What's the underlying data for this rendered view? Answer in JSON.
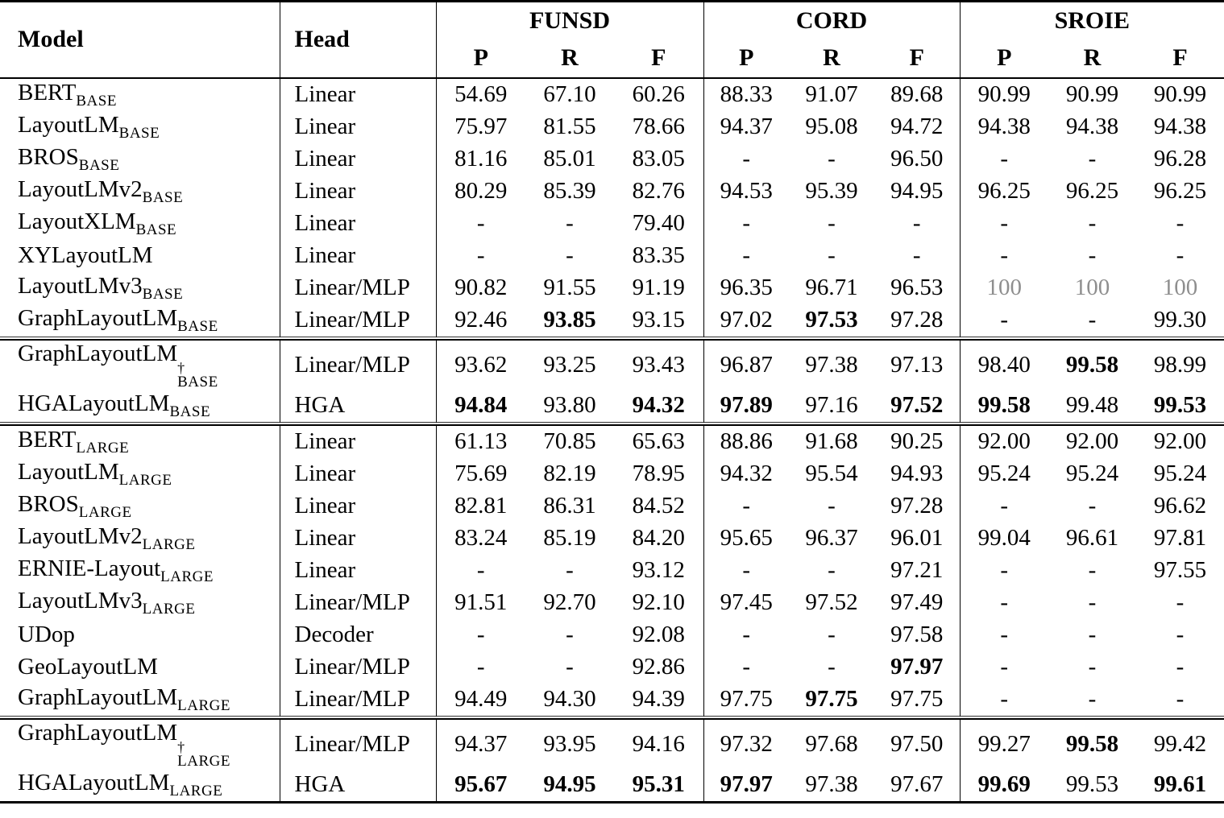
{
  "colors": {
    "text": "#000000",
    "muted_value": "#8e8e8e",
    "rule": "#000000",
    "background": "#ffffff"
  },
  "table": {
    "header": {
      "model": "Model",
      "head": "Head",
      "groups": [
        {
          "label": "FUNSD",
          "metrics": [
            "P",
            "R",
            "F"
          ]
        },
        {
          "label": "CORD",
          "metrics": [
            "P",
            "R",
            "F"
          ]
        },
        {
          "label": "SROIE",
          "metrics": [
            "P",
            "R",
            "F"
          ]
        }
      ]
    },
    "blocks": [
      {
        "rows": [
          {
            "model": "BERT",
            "subscript": "BASE",
            "dagger": "",
            "head": "Linear",
            "values": [
              "54.69",
              "67.10",
              "60.26",
              "88.33",
              "91.07",
              "89.68",
              "90.99",
              "90.99",
              "90.99"
            ],
            "bold": [],
            "gray": []
          },
          {
            "model": "LayoutLM",
            "subscript": "BASE",
            "dagger": "",
            "head": "Linear",
            "values": [
              "75.97",
              "81.55",
              "78.66",
              "94.37",
              "95.08",
              "94.72",
              "94.38",
              "94.38",
              "94.38"
            ],
            "bold": [],
            "gray": []
          },
          {
            "model": "BROS",
            "subscript": "BASE",
            "dagger": "",
            "head": "Linear",
            "values": [
              "81.16",
              "85.01",
              "83.05",
              "-",
              "-",
              "96.50",
              "-",
              "-",
              "96.28"
            ],
            "bold": [],
            "gray": []
          },
          {
            "model": "LayoutLMv2",
            "subscript": "BASE",
            "dagger": "",
            "head": "Linear",
            "values": [
              "80.29",
              "85.39",
              "82.76",
              "94.53",
              "95.39",
              "94.95",
              "96.25",
              "96.25",
              "96.25"
            ],
            "bold": [],
            "gray": []
          },
          {
            "model": "LayoutXLM",
            "subscript": "BASE",
            "dagger": "",
            "head": "Linear",
            "values": [
              "-",
              "-",
              "79.40",
              "-",
              "-",
              "-",
              "-",
              "-",
              "-"
            ],
            "bold": [],
            "gray": []
          },
          {
            "model": "XYLayoutLM",
            "subscript": "",
            "dagger": "",
            "head": "Linear",
            "values": [
              "-",
              "-",
              "83.35",
              "-",
              "-",
              "-",
              "-",
              "-",
              "-"
            ],
            "bold": [],
            "gray": []
          },
          {
            "model": "LayoutLMv3",
            "subscript": "BASE",
            "dagger": "",
            "head": "Linear/MLP",
            "values": [
              "90.82",
              "91.55",
              "91.19",
              "96.35",
              "96.71",
              "96.53",
              "100",
              "100",
              "100"
            ],
            "bold": [],
            "gray": [
              6,
              7,
              8
            ]
          },
          {
            "model": "GraphLayoutLM",
            "subscript": "BASE",
            "dagger": "",
            "head": "Linear/MLP",
            "values": [
              "92.46",
              "93.85",
              "93.15",
              "97.02",
              "97.53",
              "97.28",
              "-",
              "-",
              "99.30"
            ],
            "bold": [
              1,
              4
            ],
            "gray": []
          }
        ]
      },
      {
        "rows": [
          {
            "model": "GraphLayoutLM",
            "subscript": "BASE",
            "dagger": "†",
            "head": "Linear/MLP",
            "values": [
              "93.62",
              "93.25",
              "93.43",
              "96.87",
              "97.38",
              "97.13",
              "98.40",
              "99.58",
              "98.99"
            ],
            "bold": [
              7
            ],
            "gray": []
          },
          {
            "model": "HGALayoutLM",
            "subscript": "BASE",
            "dagger": "",
            "head": "HGA",
            "values": [
              "94.84",
              "93.80",
              "94.32",
              "97.89",
              "97.16",
              "97.52",
              "99.58",
              "99.48",
              "99.53"
            ],
            "bold": [
              0,
              2,
              3,
              5,
              6,
              8
            ],
            "gray": []
          }
        ]
      },
      {
        "rows": [
          {
            "model": "BERT",
            "subscript": "LARGE",
            "dagger": "",
            "head": "Linear",
            "values": [
              "61.13",
              "70.85",
              "65.63",
              "88.86",
              "91.68",
              "90.25",
              "92.00",
              "92.00",
              "92.00"
            ],
            "bold": [],
            "gray": []
          },
          {
            "model": "LayoutLM",
            "subscript": "LARGE",
            "dagger": "",
            "head": "Linear",
            "values": [
              "75.69",
              "82.19",
              "78.95",
              "94.32",
              "95.54",
              "94.93",
              "95.24",
              "95.24",
              "95.24"
            ],
            "bold": [],
            "gray": []
          },
          {
            "model": "BROS",
            "subscript": "LARGE",
            "dagger": "",
            "head": "Linear",
            "values": [
              "82.81",
              "86.31",
              "84.52",
              "-",
              "-",
              "97.28",
              "-",
              "-",
              "96.62"
            ],
            "bold": [],
            "gray": []
          },
          {
            "model": "LayoutLMv2",
            "subscript": "LARGE",
            "dagger": "",
            "head": "Linear",
            "values": [
              "83.24",
              "85.19",
              "84.20",
              "95.65",
              "96.37",
              "96.01",
              "99.04",
              "96.61",
              "97.81"
            ],
            "bold": [],
            "gray": []
          },
          {
            "model": "ERNIE-Layout",
            "subscript": "LARGE",
            "dagger": "",
            "head": "Linear",
            "values": [
              "-",
              "-",
              "93.12",
              "-",
              "-",
              "97.21",
              "-",
              "-",
              "97.55"
            ],
            "bold": [],
            "gray": []
          },
          {
            "model": "LayoutLMv3",
            "subscript": "LARGE",
            "dagger": "",
            "head": "Linear/MLP",
            "values": [
              "91.51",
              "92.70",
              "92.10",
              "97.45",
              "97.52",
              "97.49",
              "-",
              "-",
              "-"
            ],
            "bold": [],
            "gray": []
          },
          {
            "model": "UDop",
            "subscript": "",
            "dagger": "",
            "head": "Decoder",
            "values": [
              "-",
              "-",
              "92.08",
              "-",
              "-",
              "97.58",
              "-",
              "-",
              "-"
            ],
            "bold": [],
            "gray": []
          },
          {
            "model": "GeoLayoutLM",
            "subscript": "",
            "dagger": "",
            "head": "Linear/MLP",
            "values": [
              "-",
              "-",
              "92.86",
              "-",
              "-",
              "97.97",
              "-",
              "-",
              "-"
            ],
            "bold": [
              5
            ],
            "gray": []
          },
          {
            "model": "GraphLayoutLM",
            "subscript": "LARGE",
            "dagger": "",
            "head": "Linear/MLP",
            "values": [
              "94.49",
              "94.30",
              "94.39",
              "97.75",
              "97.75",
              "97.75",
              "-",
              "-",
              "-"
            ],
            "bold": [
              4
            ],
            "gray": []
          }
        ]
      },
      {
        "rows": [
          {
            "model": "GraphLayoutLM",
            "subscript": "LARGE",
            "dagger": "†",
            "head": "Linear/MLP",
            "values": [
              "94.37",
              "93.95",
              "94.16",
              "97.32",
              "97.68",
              "97.50",
              "99.27",
              "99.58",
              "99.42"
            ],
            "bold": [
              7
            ],
            "gray": []
          },
          {
            "model": "HGALayoutLM",
            "subscript": "LARGE",
            "dagger": "",
            "head": "HGA",
            "values": [
              "95.67",
              "94.95",
              "95.31",
              "97.97",
              "97.38",
              "97.67",
              "99.69",
              "99.53",
              "99.61"
            ],
            "bold": [
              0,
              1,
              2,
              3,
              6,
              8
            ],
            "gray": []
          }
        ]
      }
    ]
  }
}
